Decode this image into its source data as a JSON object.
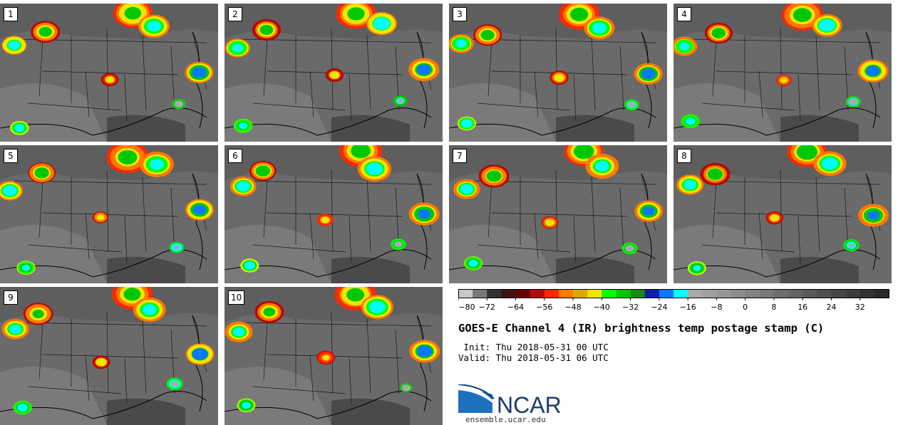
{
  "panels": [
    {
      "label": "1"
    },
    {
      "label": "2"
    },
    {
      "label": "3"
    },
    {
      "label": "4"
    },
    {
      "label": "5"
    },
    {
      "label": "6"
    },
    {
      "label": "7"
    },
    {
      "label": "8"
    },
    {
      "label": "9"
    },
    {
      "label": "10"
    }
  ],
  "colorbar": {
    "min": -80,
    "max": 40,
    "step": 4,
    "tick_labels": [
      "−80",
      "−72",
      "−64",
      "−56",
      "−48",
      "−40",
      "−32",
      "−24",
      "−16",
      "−8",
      "0",
      "8",
      "16",
      "24",
      "32"
    ],
    "tick_values": [
      -80,
      -72,
      -64,
      -56,
      -48,
      -40,
      -32,
      -24,
      -16,
      -8,
      0,
      8,
      16,
      24,
      32
    ],
    "colors": [
      "#c8c8c8",
      "#787878",
      "#323232",
      "#3c1414",
      "#6e0000",
      "#b40a0a",
      "#ff2800",
      "#ff7800",
      "#dcaa00",
      "#f0e600",
      "#00ff00",
      "#00c800",
      "#148c14",
      "#0a1eaa",
      "#0a78ff",
      "#00ffff",
      "#aaaaaa",
      "#a0a0a0",
      "#969696",
      "#8c8c8c",
      "#828282",
      "#787878",
      "#6e6e6e",
      "#646464",
      "#5a5a5a",
      "#505050",
      "#464646",
      "#3c3c3c",
      "#323232",
      "#282828"
    ]
  },
  "title": "GOES-E Channel 4 (IR) brightness temp postage stamp (C)",
  "init": " Init: Thu 2018-05-31 00 UTC",
  "valid": "Valid: Thu 2018-05-31 06 UTC",
  "logo_text": "NCAR",
  "website": "ensemble.ucar.edu"
}
